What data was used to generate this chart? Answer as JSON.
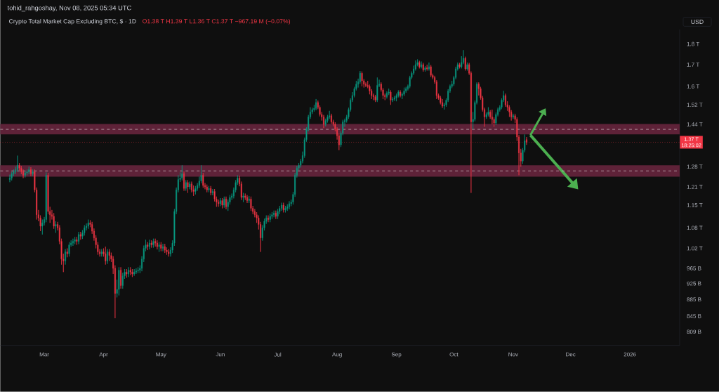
{
  "chart_data": {
    "type": "candlestick",
    "title": "Crypto Total Market Cap Excluding BTC, $ · 1D",
    "annotations": [
      "tohid_rahgoshay, Nov 08, 2025 05:34 UTC",
      "O1.38 T H1.39 T L1.36 T C1.37 T −967.19 M (−0.07%)",
      "USD",
      "18:25:02"
    ],
    "x": [
      "2025-02-11",
      "2025-02-12",
      "2025-02-13",
      "2025-02-14",
      "2025-02-15",
      "2025-02-16",
      "2025-02-17",
      "2025-02-18",
      "2025-02-19",
      "2025-02-20",
      "2025-02-21",
      "2025-02-22",
      "2025-02-23",
      "2025-02-24",
      "2025-02-25",
      "2025-02-26",
      "2025-02-27",
      "2025-02-28",
      "2025-03-01",
      "2025-03-02",
      "2025-03-03",
      "2025-03-04",
      "2025-03-05",
      "2025-03-06",
      "2025-03-07",
      "2025-03-08",
      "2025-03-09",
      "2025-03-10",
      "2025-03-11",
      "2025-03-12",
      "2025-03-13",
      "2025-03-14",
      "2025-03-15",
      "2025-03-16",
      "2025-03-17",
      "2025-03-18",
      "2025-03-19",
      "2025-03-20",
      "2025-03-21",
      "2025-03-22",
      "2025-03-23",
      "2025-03-24",
      "2025-03-25",
      "2025-03-26",
      "2025-03-27",
      "2025-03-28",
      "2025-03-29",
      "2025-03-30",
      "2025-03-31",
      "2025-04-01",
      "2025-04-02",
      "2025-04-03",
      "2025-04-04",
      "2025-04-05",
      "2025-04-06",
      "2025-04-07",
      "2025-04-08",
      "2025-04-09",
      "2025-04-10",
      "2025-04-11",
      "2025-04-12",
      "2025-04-13",
      "2025-04-14",
      "2025-04-15",
      "2025-04-16",
      "2025-04-17",
      "2025-04-18",
      "2025-04-19",
      "2025-04-20",
      "2025-04-21",
      "2025-04-22",
      "2025-04-23",
      "2025-04-24",
      "2025-04-25",
      "2025-04-26",
      "2025-04-27",
      "2025-04-28",
      "2025-04-29",
      "2025-04-30",
      "2025-05-01",
      "2025-05-02",
      "2025-05-03",
      "2025-05-04",
      "2025-05-05",
      "2025-05-06",
      "2025-05-07",
      "2025-05-08",
      "2025-05-09",
      "2025-05-10",
      "2025-05-11",
      "2025-05-12",
      "2025-05-13",
      "2025-05-14",
      "2025-05-15",
      "2025-05-16",
      "2025-05-17",
      "2025-05-18",
      "2025-05-19",
      "2025-05-20",
      "2025-05-21",
      "2025-05-22",
      "2025-05-23",
      "2025-05-24",
      "2025-05-25",
      "2025-05-26",
      "2025-05-27",
      "2025-05-28",
      "2025-05-29",
      "2025-05-30",
      "2025-05-31",
      "2025-06-01",
      "2025-06-02",
      "2025-06-03",
      "2025-06-04",
      "2025-06-05",
      "2025-06-06",
      "2025-06-07",
      "2025-06-08",
      "2025-06-09",
      "2025-06-10",
      "2025-06-11",
      "2025-06-12",
      "2025-06-13",
      "2025-06-14",
      "2025-06-15",
      "2025-06-16",
      "2025-06-17",
      "2025-06-18",
      "2025-06-19",
      "2025-06-20",
      "2025-06-21",
      "2025-06-22",
      "2025-06-23",
      "2025-06-24",
      "2025-06-25",
      "2025-06-26",
      "2025-06-27",
      "2025-06-28",
      "2025-06-29",
      "2025-06-30",
      "2025-07-01",
      "2025-07-02",
      "2025-07-03",
      "2025-07-04",
      "2025-07-05",
      "2025-07-06",
      "2025-07-07",
      "2025-07-08",
      "2025-07-09",
      "2025-07-10",
      "2025-07-11",
      "2025-07-12",
      "2025-07-13",
      "2025-07-14",
      "2025-07-15",
      "2025-07-16",
      "2025-07-17",
      "2025-07-18",
      "2025-07-19",
      "2025-07-20",
      "2025-07-21",
      "2025-07-22",
      "2025-07-23",
      "2025-07-24",
      "2025-07-25",
      "2025-07-26",
      "2025-07-27",
      "2025-07-28",
      "2025-07-29",
      "2025-07-30",
      "2025-07-31",
      "2025-08-01",
      "2025-08-02",
      "2025-08-03",
      "2025-08-04",
      "2025-08-05",
      "2025-08-06",
      "2025-08-07",
      "2025-08-08",
      "2025-08-09",
      "2025-08-10",
      "2025-08-11",
      "2025-08-12",
      "2025-08-13",
      "2025-08-14",
      "2025-08-15",
      "2025-08-16",
      "2025-08-17",
      "2025-08-18",
      "2025-08-19",
      "2025-08-20",
      "2025-08-21",
      "2025-08-22",
      "2025-08-23",
      "2025-08-24",
      "2025-08-25",
      "2025-08-26",
      "2025-08-27",
      "2025-08-28",
      "2025-08-29",
      "2025-08-30",
      "2025-08-31",
      "2025-09-01",
      "2025-09-02",
      "2025-09-03",
      "2025-09-04",
      "2025-09-05",
      "2025-09-06",
      "2025-09-07",
      "2025-09-08",
      "2025-09-09",
      "2025-09-10",
      "2025-09-11",
      "2025-09-12",
      "2025-09-13",
      "2025-09-14",
      "2025-09-15",
      "2025-09-16",
      "2025-09-17",
      "2025-09-18",
      "2025-09-19",
      "2025-09-20",
      "2025-09-21",
      "2025-09-22",
      "2025-09-23",
      "2025-09-24",
      "2025-09-25",
      "2025-09-26",
      "2025-09-27",
      "2025-09-28",
      "2025-09-29",
      "2025-09-30",
      "2025-10-01",
      "2025-10-02",
      "2025-10-03",
      "2025-10-04",
      "2025-10-05",
      "2025-10-06",
      "2025-10-07",
      "2025-10-08",
      "2025-10-09",
      "2025-10-10",
      "2025-10-11",
      "2025-10-12",
      "2025-10-13",
      "2025-10-14",
      "2025-10-15",
      "2025-10-16",
      "2025-10-17",
      "2025-10-18",
      "2025-10-19",
      "2025-10-20",
      "2025-10-21",
      "2025-10-22",
      "2025-10-23",
      "2025-10-24",
      "2025-10-25",
      "2025-10-26",
      "2025-10-27",
      "2025-10-28",
      "2025-10-29",
      "2025-10-30",
      "2025-10-31",
      "2025-11-01",
      "2025-11-02",
      "2025-11-03",
      "2025-11-04",
      "2025-11-05",
      "2025-11-06",
      "2025-11-07",
      "2025-11-08"
    ],
    "ohlc": [
      [
        1235000000000.0,
        1252000000000.0,
        1226000000000.0,
        1240000000000.0
      ],
      [
        1240000000000.0,
        1262000000000.0,
        1232000000000.0,
        1255000000000.0
      ],
      [
        1255000000000.0,
        1270000000000.0,
        1247000000000.0,
        1262000000000.0
      ],
      [
        1262000000000.0,
        1280000000000.0,
        1254000000000.0,
        1270000000000.0
      ],
      [
        1270000000000.0,
        1320000000000.0,
        1262000000000.0,
        1285000000000.0
      ],
      [
        1285000000000.0,
        1293000000000.0,
        1267000000000.0,
        1275000000000.0
      ],
      [
        1275000000000.0,
        1283000000000.0,
        1254000000000.0,
        1262000000000.0
      ],
      [
        1262000000000.0,
        1270000000000.0,
        1240000000000.0,
        1250000000000.0
      ],
      [
        1250000000000.0,
        1266000000000.0,
        1242000000000.0,
        1258000000000.0
      ],
      [
        1258000000000.0,
        1270000000000.0,
        1250000000000.0,
        1262000000000.0
      ],
      [
        1262000000000.0,
        1280000000000.0,
        1254000000000.0,
        1270000000000.0
      ],
      [
        1270000000000.0,
        1278000000000.0,
        1247000000000.0,
        1255000000000.0
      ],
      [
        1255000000000.0,
        1270000000000.0,
        1247000000000.0,
        1262000000000.0
      ],
      [
        1262000000000.0,
        1270000000000.0,
        1192000000000.0,
        1200000000000.0
      ],
      [
        1200000000000.0,
        1208000000000.0,
        1105000000000.0,
        1120000000000.0
      ],
      [
        1120000000000.0,
        1135000000000.0,
        1100000000000.0,
        1110000000000.0
      ],
      [
        1110000000000.0,
        1118000000000.0,
        1070000000000.0,
        1085000000000.0
      ],
      [
        1085000000000.0,
        1105000000000.0,
        1060000000000.0,
        1095000000000.0
      ],
      [
        1095000000000.0,
        1113000000000.0,
        1087000000000.0,
        1105000000000.0
      ],
      [
        1105000000000.0,
        1260000000000.0,
        1097000000000.0,
        1250000000000.0
      ],
      [
        1250000000000.0,
        1258000000000.0,
        1122000000000.0,
        1130000000000.0
      ],
      [
        1130000000000.0,
        1145000000000.0,
        1095000000000.0,
        1120000000000.0
      ],
      [
        1120000000000.0,
        1135000000000.0,
        1105000000000.0,
        1115000000000.0
      ],
      [
        1115000000000.0,
        1125000000000.0,
        1077000000000.0,
        1085000000000.0
      ],
      [
        1085000000000.0,
        1100000000000.0,
        1065000000000.0,
        1090000000000.0
      ],
      [
        1090000000000.0,
        1098000000000.0,
        1072000000000.0,
        1080000000000.0
      ],
      [
        1080000000000.0,
        1088000000000.0,
        1032000000000.0,
        1040000000000.0
      ],
      [
        1040000000000.0,
        1048000000000.0,
        975000000000.0,
        990000000000.0
      ],
      [
        990000000000.0,
        1005000000000.0,
        955000000000.0,
        985000000000.0
      ],
      [
        985000000000.0,
        1018000000000.0,
        975000000000.0,
        1010000000000.0
      ],
      [
        1010000000000.0,
        1020000000000.0,
        995000000000.0,
        1005000000000.0
      ],
      [
        1005000000000.0,
        1038000000000.0,
        997000000000.0,
        1030000000000.0
      ],
      [
        1030000000000.0,
        1043000000000.0,
        1025000000000.0,
        1035000000000.0
      ],
      [
        1035000000000.0,
        1048000000000.0,
        1027000000000.0,
        1040000000000.0
      ],
      [
        1040000000000.0,
        1053000000000.0,
        1032000000000.0,
        1045000000000.0
      ],
      [
        1045000000000.0,
        1053000000000.0,
        1030000000000.0,
        1040000000000.0
      ],
      [
        1040000000000.0,
        1068000000000.0,
        1032000000000.0,
        1060000000000.0
      ],
      [
        1060000000000.0,
        1068000000000.0,
        1045000000000.0,
        1055000000000.0
      ],
      [
        1055000000000.0,
        1073000000000.0,
        1047000000000.0,
        1065000000000.0
      ],
      [
        1065000000000.0,
        1088000000000.0,
        1057000000000.0,
        1080000000000.0
      ],
      [
        1080000000000.0,
        1093000000000.0,
        1072000000000.0,
        1085000000000.0
      ],
      [
        1085000000000.0,
        1105000000000.0,
        1077000000000.0,
        1095000000000.0
      ],
      [
        1095000000000.0,
        1103000000000.0,
        1082000000000.0,
        1090000000000.0
      ],
      [
        1090000000000.0,
        1098000000000.0,
        1062000000000.0,
        1070000000000.0
      ],
      [
        1070000000000.0,
        1078000000000.0,
        1042000000000.0,
        1050000000000.0
      ],
      [
        1050000000000.0,
        1058000000000.0,
        1020000000000.0,
        1030000000000.0
      ],
      [
        1030000000000.0,
        1038000000000.0,
        1002000000000.0,
        1010000000000.0
      ],
      [
        1010000000000.0,
        1018000000000.0,
        997000000000.0,
        1005000000000.0
      ],
      [
        1005000000000.0,
        1018000000000.0,
        997000000000.0,
        1010000000000.0
      ],
      [
        1010000000000.0,
        1020000000000.0,
        997000000000.0,
        1005000000000.0
      ],
      [
        1005000000000.0,
        1025000000000.0,
        975000000000.0,
        985000000000.0
      ],
      [
        985000000000.0,
        1018000000000.0,
        977000000000.0,
        1010000000000.0
      ],
      [
        1010000000000.0,
        1018000000000.0,
        985000000000.0,
        1000000000000.0
      ],
      [
        1000000000000.0,
        1008000000000.0,
        982000000000.0,
        990000000000.0
      ],
      [
        990000000000.0,
        998000000000.0,
        950000000000.0,
        965000000000.0
      ],
      [
        965000000000.0,
        973000000000.0,
        840000000000.0,
        900000000000.0
      ],
      [
        900000000000.0,
        935000000000.0,
        890000000000.0,
        910000000000.0
      ],
      [
        910000000000.0,
        968000000000.0,
        895000000000.0,
        960000000000.0
      ],
      [
        960000000000.0,
        968000000000.0,
        912000000000.0,
        920000000000.0
      ],
      [
        920000000000.0,
        953000000000.0,
        912000000000.0,
        945000000000.0
      ],
      [
        945000000000.0,
        963000000000.0,
        937000000000.0,
        955000000000.0
      ],
      [
        955000000000.0,
        963000000000.0,
        940000000000.0,
        950000000000.0
      ],
      [
        950000000000.0,
        968000000000.0,
        942000000000.0,
        960000000000.0
      ],
      [
        960000000000.0,
        968000000000.0,
        947000000000.0,
        955000000000.0
      ],
      [
        955000000000.0,
        963000000000.0,
        942000000000.0,
        950000000000.0
      ],
      [
        950000000000.0,
        963000000000.0,
        945000000000.0,
        955000000000.0
      ],
      [
        955000000000.0,
        965000000000.0,
        950000000000.0,
        958000000000.0
      ],
      [
        958000000000.0,
        968000000000.0,
        952000000000.0,
        960000000000.0
      ],
      [
        960000000000.0,
        973000000000.0,
        952000000000.0,
        965000000000.0
      ],
      [
        965000000000.0,
        998000000000.0,
        957000000000.0,
        990000000000.0
      ],
      [
        990000000000.0,
        1028000000000.0,
        982000000000.0,
        1020000000000.0
      ],
      [
        1020000000000.0,
        1045000000000.0,
        1012000000000.0,
        1030000000000.0
      ],
      [
        1030000000000.0,
        1038000000000.0,
        1015000000000.0,
        1025000000000.0
      ],
      [
        1025000000000.0,
        1045000000000.0,
        1017000000000.0,
        1035000000000.0
      ],
      [
        1035000000000.0,
        1043000000000.0,
        1022000000000.0,
        1030000000000.0
      ],
      [
        1030000000000.0,
        1048000000000.0,
        1022000000000.0,
        1040000000000.0
      ],
      [
        1040000000000.0,
        1048000000000.0,
        1025000000000.0,
        1035000000000.0
      ],
      [
        1035000000000.0,
        1043000000000.0,
        1017000000000.0,
        1025000000000.0
      ],
      [
        1025000000000.0,
        1038000000000.0,
        1010000000000.0,
        1030000000000.0
      ],
      [
        1030000000000.0,
        1038000000000.0,
        1012000000000.0,
        1020000000000.0
      ],
      [
        1020000000000.0,
        1033000000000.0,
        1012000000000.0,
        1025000000000.0
      ],
      [
        1025000000000.0,
        1033000000000.0,
        1007000000000.0,
        1015000000000.0
      ],
      [
        1015000000000.0,
        1023000000000.0,
        1002000000000.0,
        1010000000000.0
      ],
      [
        1010000000000.0,
        1018000000000.0,
        997000000000.0,
        1005000000000.0
      ],
      [
        1005000000000.0,
        1023000000000.0,
        997000000000.0,
        1015000000000.0
      ],
      [
        1015000000000.0,
        1043000000000.0,
        1007000000000.0,
        1035000000000.0
      ],
      [
        1035000000000.0,
        1138000000000.0,
        1027000000000.0,
        1130000000000.0
      ],
      [
        1130000000000.0,
        1208000000000.0,
        1122000000000.0,
        1200000000000.0
      ],
      [
        1200000000000.0,
        1250000000000.0,
        1192000000000.0,
        1235000000000.0
      ],
      [
        1235000000000.0,
        1260000000000.0,
        1227000000000.0,
        1240000000000.0
      ],
      [
        1240000000000.0,
        1285000000000.0,
        1232000000000.0,
        1255000000000.0
      ],
      [
        1255000000000.0,
        1263000000000.0,
        1197000000000.0,
        1205000000000.0
      ],
      [
        1205000000000.0,
        1233000000000.0,
        1197000000000.0,
        1225000000000.0
      ],
      [
        1225000000000.0,
        1233000000000.0,
        1190000000000.0,
        1210000000000.0
      ],
      [
        1210000000000.0,
        1228000000000.0,
        1202000000000.0,
        1220000000000.0
      ],
      [
        1220000000000.0,
        1228000000000.0,
        1192000000000.0,
        1200000000000.0
      ],
      [
        1200000000000.0,
        1215000000000.0,
        1180000000000.0,
        1195000000000.0
      ],
      [
        1195000000000.0,
        1213000000000.0,
        1185000000000.0,
        1205000000000.0
      ],
      [
        1205000000000.0,
        1223000000000.0,
        1197000000000.0,
        1215000000000.0
      ],
      [
        1215000000000.0,
        1245000000000.0,
        1207000000000.0,
        1230000000000.0
      ],
      [
        1230000000000.0,
        1285000000000.0,
        1222000000000.0,
        1250000000000.0
      ],
      [
        1250000000000.0,
        1258000000000.0,
        1207000000000.0,
        1215000000000.0
      ],
      [
        1215000000000.0,
        1223000000000.0,
        1202000000000.0,
        1210000000000.0
      ],
      [
        1210000000000.0,
        1218000000000.0,
        1192000000000.0,
        1200000000000.0
      ],
      [
        1200000000000.0,
        1213000000000.0,
        1192000000000.0,
        1205000000000.0
      ],
      [
        1205000000000.0,
        1213000000000.0,
        1182000000000.0,
        1190000000000.0
      ],
      [
        1190000000000.0,
        1203000000000.0,
        1182000000000.0,
        1195000000000.0
      ],
      [
        1195000000000.0,
        1203000000000.0,
        1162000000000.0,
        1170000000000.0
      ],
      [
        1170000000000.0,
        1178000000000.0,
        1145000000000.0,
        1160000000000.0
      ],
      [
        1160000000000.0,
        1168000000000.0,
        1145000000000.0,
        1155000000000.0
      ],
      [
        1155000000000.0,
        1173000000000.0,
        1147000000000.0,
        1165000000000.0
      ],
      [
        1165000000000.0,
        1173000000000.0,
        1140000000000.0,
        1150000000000.0
      ],
      [
        1150000000000.0,
        1178000000000.0,
        1142000000000.0,
        1170000000000.0
      ],
      [
        1170000000000.0,
        1178000000000.0,
        1137000000000.0,
        1145000000000.0
      ],
      [
        1145000000000.0,
        1168000000000.0,
        1132000000000.0,
        1160000000000.0
      ],
      [
        1160000000000.0,
        1183000000000.0,
        1152000000000.0,
        1175000000000.0
      ],
      [
        1175000000000.0,
        1188000000000.0,
        1167000000000.0,
        1180000000000.0
      ],
      [
        1180000000000.0,
        1208000000000.0,
        1172000000000.0,
        1200000000000.0
      ],
      [
        1200000000000.0,
        1233000000000.0,
        1192000000000.0,
        1225000000000.0
      ],
      [
        1225000000000.0,
        1250000000000.0,
        1217000000000.0,
        1240000000000.0
      ],
      [
        1240000000000.0,
        1248000000000.0,
        1212000000000.0,
        1220000000000.0
      ],
      [
        1220000000000.0,
        1228000000000.0,
        1167000000000.0,
        1175000000000.0
      ],
      [
        1175000000000.0,
        1190000000000.0,
        1160000000000.0,
        1180000000000.0
      ],
      [
        1180000000000.0,
        1188000000000.0,
        1167000000000.0,
        1175000000000.0
      ],
      [
        1175000000000.0,
        1183000000000.0,
        1157000000000.0,
        1165000000000.0
      ],
      [
        1165000000000.0,
        1180000000000.0,
        1157000000000.0,
        1170000000000.0
      ],
      [
        1170000000000.0,
        1178000000000.0,
        1132000000000.0,
        1140000000000.0
      ],
      [
        1140000000000.0,
        1148000000000.0,
        1122000000000.0,
        1130000000000.0
      ],
      [
        1130000000000.0,
        1138000000000.0,
        1112000000000.0,
        1120000000000.0
      ],
      [
        1120000000000.0,
        1128000000000.0,
        1095000000000.0,
        1110000000000.0
      ],
      [
        1110000000000.0,
        1118000000000.0,
        1075000000000.0,
        1090000000000.0
      ],
      [
        1090000000000.0,
        1098000000000.0,
        1010000000000.0,
        1050000000000.0
      ],
      [
        1050000000000.0,
        1088000000000.0,
        1042000000000.0,
        1080000000000.0
      ],
      [
        1080000000000.0,
        1108000000000.0,
        1072000000000.0,
        1100000000000.0
      ],
      [
        1100000000000.0,
        1118000000000.0,
        1092000000000.0,
        1110000000000.0
      ],
      [
        1110000000000.0,
        1118000000000.0,
        1097000000000.0,
        1105000000000.0
      ],
      [
        1105000000000.0,
        1123000000000.0,
        1097000000000.0,
        1115000000000.0
      ],
      [
        1115000000000.0,
        1128000000000.0,
        1107000000000.0,
        1120000000000.0
      ],
      [
        1120000000000.0,
        1133000000000.0,
        1112000000000.0,
        1125000000000.0
      ],
      [
        1125000000000.0,
        1133000000000.0,
        1107000000000.0,
        1115000000000.0
      ],
      [
        1115000000000.0,
        1138000000000.0,
        1107000000000.0,
        1130000000000.0
      ],
      [
        1130000000000.0,
        1148000000000.0,
        1122000000000.0,
        1140000000000.0
      ],
      [
        1140000000000.0,
        1158000000000.0,
        1132000000000.0,
        1150000000000.0
      ],
      [
        1150000000000.0,
        1158000000000.0,
        1127000000000.0,
        1135000000000.0
      ],
      [
        1135000000000.0,
        1148000000000.0,
        1127000000000.0,
        1140000000000.0
      ],
      [
        1140000000000.0,
        1153000000000.0,
        1132000000000.0,
        1145000000000.0
      ],
      [
        1145000000000.0,
        1163000000000.0,
        1137000000000.0,
        1155000000000.0
      ],
      [
        1155000000000.0,
        1168000000000.0,
        1147000000000.0,
        1160000000000.0
      ],
      [
        1160000000000.0,
        1193000000000.0,
        1152000000000.0,
        1185000000000.0
      ],
      [
        1185000000000.0,
        1258000000000.0,
        1177000000000.0,
        1250000000000.0
      ],
      [
        1250000000000.0,
        1283000000000.0,
        1242000000000.0,
        1275000000000.0
      ],
      [
        1275000000000.0,
        1293000000000.0,
        1267000000000.0,
        1285000000000.0
      ],
      [
        1285000000000.0,
        1308000000000.0,
        1277000000000.0,
        1300000000000.0
      ],
      [
        1300000000000.0,
        1335000000000.0,
        1292000000000.0,
        1320000000000.0
      ],
      [
        1320000000000.0,
        1388000000000.0,
        1312000000000.0,
        1380000000000.0
      ],
      [
        1380000000000.0,
        1428000000000.0,
        1372000000000.0,
        1420000000000.0
      ],
      [
        1420000000000.0,
        1478000000000.0,
        1412000000000.0,
        1470000000000.0
      ],
      [
        1470000000000.0,
        1510000000000.0,
        1462000000000.0,
        1490000000000.0
      ],
      [
        1490000000000.0,
        1508000000000.0,
        1482000000000.0,
        1500000000000.0
      ],
      [
        1500000000000.0,
        1520000000000.0,
        1492000000000.0,
        1505000000000.0
      ],
      [
        1505000000000.0,
        1545000000000.0,
        1497000000000.0,
        1530000000000.0
      ],
      [
        1530000000000.0,
        1538000000000.0,
        1502000000000.0,
        1510000000000.0
      ],
      [
        1510000000000.0,
        1518000000000.0,
        1472000000000.0,
        1480000000000.0
      ],
      [
        1480000000000.0,
        1490000000000.0,
        1455000000000.0,
        1470000000000.0
      ],
      [
        1470000000000.0,
        1478000000000.0,
        1425000000000.0,
        1440000000000.0
      ],
      [
        1440000000000.0,
        1463000000000.0,
        1432000000000.0,
        1455000000000.0
      ],
      [
        1455000000000.0,
        1478000000000.0,
        1447000000000.0,
        1470000000000.0
      ],
      [
        1470000000000.0,
        1495000000000.0,
        1462000000000.0,
        1475000000000.0
      ],
      [
        1475000000000.0,
        1483000000000.0,
        1442000000000.0,
        1450000000000.0
      ],
      [
        1450000000000.0,
        1458000000000.0,
        1432000000000.0,
        1440000000000.0
      ],
      [
        1440000000000.0,
        1448000000000.0,
        1412000000000.0,
        1420000000000.0
      ],
      [
        1420000000000.0,
        1428000000000.0,
        1380000000000.0,
        1395000000000.0
      ],
      [
        1395000000000.0,
        1403000000000.0,
        1340000000000.0,
        1360000000000.0
      ],
      [
        1360000000000.0,
        1413000000000.0,
        1352000000000.0,
        1405000000000.0
      ],
      [
        1405000000000.0,
        1458000000000.0,
        1397000000000.0,
        1450000000000.0
      ],
      [
        1450000000000.0,
        1463000000000.0,
        1430000000000.0,
        1455000000000.0
      ],
      [
        1455000000000.0,
        1478000000000.0,
        1447000000000.0,
        1470000000000.0
      ],
      [
        1470000000000.0,
        1508000000000.0,
        1462000000000.0,
        1500000000000.0
      ],
      [
        1500000000000.0,
        1548000000000.0,
        1492000000000.0,
        1540000000000.0
      ],
      [
        1540000000000.0,
        1575000000000.0,
        1532000000000.0,
        1560000000000.0
      ],
      [
        1560000000000.0,
        1598000000000.0,
        1552000000000.0,
        1590000000000.0
      ],
      [
        1590000000000.0,
        1625000000000.0,
        1582000000000.0,
        1610000000000.0
      ],
      [
        1610000000000.0,
        1635000000000.0,
        1595000000000.0,
        1620000000000.0
      ],
      [
        1620000000000.0,
        1670000000000.0,
        1612000000000.0,
        1660000000000.0
      ],
      [
        1660000000000.0,
        1668000000000.0,
        1600000000000.0,
        1625000000000.0
      ],
      [
        1625000000000.0,
        1633000000000.0,
        1595000000000.0,
        1610000000000.0
      ],
      [
        1610000000000.0,
        1618000000000.0,
        1597000000000.0,
        1605000000000.0
      ],
      [
        1605000000000.0,
        1625000000000.0,
        1592000000000.0,
        1600000000000.0
      ],
      [
        1600000000000.0,
        1608000000000.0,
        1565000000000.0,
        1580000000000.0
      ],
      [
        1580000000000.0,
        1588000000000.0,
        1545000000000.0,
        1560000000000.0
      ],
      [
        1560000000000.0,
        1568000000000.0,
        1540000000000.0,
        1555000000000.0
      ],
      [
        1555000000000.0,
        1563000000000.0,
        1532000000000.0,
        1540000000000.0
      ],
      [
        1540000000000.0,
        1640000000000.0,
        1532000000000.0,
        1605000000000.0
      ],
      [
        1605000000000.0,
        1630000000000.0,
        1597000000000.0,
        1610000000000.0
      ],
      [
        1610000000000.0,
        1618000000000.0,
        1577000000000.0,
        1585000000000.0
      ],
      [
        1585000000000.0,
        1593000000000.0,
        1545000000000.0,
        1560000000000.0
      ],
      [
        1560000000000.0,
        1568000000000.0,
        1540000000000.0,
        1555000000000.0
      ],
      [
        1555000000000.0,
        1578000000000.0,
        1547000000000.0,
        1570000000000.0
      ],
      [
        1570000000000.0,
        1590000000000.0,
        1562000000000.0,
        1575000000000.0
      ],
      [
        1575000000000.0,
        1583000000000.0,
        1520000000000.0,
        1540000000000.0
      ],
      [
        1540000000000.0,
        1553000000000.0,
        1532000000000.0,
        1545000000000.0
      ],
      [
        1545000000000.0,
        1558000000000.0,
        1537000000000.0,
        1550000000000.0
      ],
      [
        1550000000000.0,
        1568000000000.0,
        1535000000000.0,
        1560000000000.0
      ],
      [
        1560000000000.0,
        1583000000000.0,
        1552000000000.0,
        1575000000000.0
      ],
      [
        1575000000000.0,
        1583000000000.0,
        1552000000000.0,
        1560000000000.0
      ],
      [
        1560000000000.0,
        1573000000000.0,
        1545000000000.0,
        1565000000000.0
      ],
      [
        1565000000000.0,
        1595000000000.0,
        1557000000000.0,
        1580000000000.0
      ],
      [
        1580000000000.0,
        1598000000000.0,
        1572000000000.0,
        1590000000000.0
      ],
      [
        1590000000000.0,
        1608000000000.0,
        1582000000000.0,
        1600000000000.0
      ],
      [
        1600000000000.0,
        1648000000000.0,
        1592000000000.0,
        1640000000000.0
      ],
      [
        1640000000000.0,
        1668000000000.0,
        1632000000000.0,
        1660000000000.0
      ],
      [
        1660000000000.0,
        1695000000000.0,
        1652000000000.0,
        1680000000000.0
      ],
      [
        1680000000000.0,
        1720000000000.0,
        1672000000000.0,
        1700000000000.0
      ],
      [
        1700000000000.0,
        1725000000000.0,
        1692000000000.0,
        1710000000000.0
      ],
      [
        1710000000000.0,
        1718000000000.0,
        1682000000000.0,
        1690000000000.0
      ],
      [
        1690000000000.0,
        1715000000000.0,
        1682000000000.0,
        1700000000000.0
      ],
      [
        1700000000000.0,
        1708000000000.0,
        1667000000000.0,
        1675000000000.0
      ],
      [
        1675000000000.0,
        1693000000000.0,
        1667000000000.0,
        1685000000000.0
      ],
      [
        1685000000000.0,
        1700000000000.0,
        1672000000000.0,
        1680000000000.0
      ],
      [
        1680000000000.0,
        1710000000000.0,
        1672000000000.0,
        1690000000000.0
      ],
      [
        1690000000000.0,
        1698000000000.0,
        1642000000000.0,
        1650000000000.0
      ],
      [
        1650000000000.0,
        1658000000000.0,
        1632000000000.0,
        1640000000000.0
      ],
      [
        1640000000000.0,
        1648000000000.0,
        1612000000000.0,
        1620000000000.0
      ],
      [
        1620000000000.0,
        1628000000000.0,
        1545000000000.0,
        1560000000000.0
      ],
      [
        1560000000000.0,
        1568000000000.0,
        1542000000000.0,
        1550000000000.0
      ],
      [
        1550000000000.0,
        1558000000000.0,
        1522000000000.0,
        1530000000000.0
      ],
      [
        1530000000000.0,
        1545000000000.0,
        1507000000000.0,
        1515000000000.0
      ],
      [
        1515000000000.0,
        1528000000000.0,
        1500000000000.0,
        1520000000000.0
      ],
      [
        1520000000000.0,
        1548000000000.0,
        1512000000000.0,
        1540000000000.0
      ],
      [
        1540000000000.0,
        1588000000000.0,
        1532000000000.0,
        1580000000000.0
      ],
      [
        1580000000000.0,
        1608000000000.0,
        1572000000000.0,
        1600000000000.0
      ],
      [
        1600000000000.0,
        1625000000000.0,
        1592000000000.0,
        1610000000000.0
      ],
      [
        1610000000000.0,
        1648000000000.0,
        1602000000000.0,
        1640000000000.0
      ],
      [
        1640000000000.0,
        1690000000000.0,
        1632000000000.0,
        1680000000000.0
      ],
      [
        1680000000000.0,
        1710000000000.0,
        1672000000000.0,
        1700000000000.0
      ],
      [
        1700000000000.0,
        1708000000000.0,
        1682000000000.0,
        1690000000000.0
      ],
      [
        1690000000000.0,
        1740000000000.0,
        1682000000000.0,
        1710000000000.0
      ],
      [
        1710000000000.0,
        1770000000000.0,
        1702000000000.0,
        1730000000000.0
      ],
      [
        1730000000000.0,
        1738000000000.0,
        1672000000000.0,
        1680000000000.0
      ],
      [
        1680000000000.0,
        1710000000000.0,
        1672000000000.0,
        1700000000000.0
      ],
      [
        1700000000000.0,
        1708000000000.0,
        1652000000000.0,
        1660000000000.0
      ],
      [
        1660000000000.0,
        1668000000000.0,
        1190000000000.0,
        1450000000000.0
      ],
      [
        1450000000000.0,
        1490000000000.0,
        1420000000000.0,
        1460000000000.0
      ],
      [
        1460000000000.0,
        1538000000000.0,
        1452000000000.0,
        1530000000000.0
      ],
      [
        1530000000000.0,
        1618000000000.0,
        1522000000000.0,
        1610000000000.0
      ],
      [
        1610000000000.0,
        1618000000000.0,
        1560000000000.0,
        1590000000000.0
      ],
      [
        1590000000000.0,
        1598000000000.0,
        1542000000000.0,
        1550000000000.0
      ],
      [
        1550000000000.0,
        1558000000000.0,
        1492000000000.0,
        1500000000000.0
      ],
      [
        1500000000000.0,
        1508000000000.0,
        1430000000000.0,
        1470000000000.0
      ],
      [
        1470000000000.0,
        1488000000000.0,
        1462000000000.0,
        1480000000000.0
      ],
      [
        1480000000000.0,
        1510000000000.0,
        1472000000000.0,
        1490000000000.0
      ],
      [
        1490000000000.0,
        1498000000000.0,
        1462000000000.0,
        1470000000000.0
      ],
      [
        1470000000000.0,
        1500000000000.0,
        1440000000000.0,
        1460000000000.0
      ],
      [
        1460000000000.0,
        1468000000000.0,
        1430000000000.0,
        1445000000000.0
      ],
      [
        1445000000000.0,
        1488000000000.0,
        1437000000000.0,
        1480000000000.0
      ],
      [
        1480000000000.0,
        1508000000000.0,
        1472000000000.0,
        1500000000000.0
      ],
      [
        1500000000000.0,
        1518000000000.0,
        1492000000000.0,
        1510000000000.0
      ],
      [
        1510000000000.0,
        1548000000000.0,
        1502000000000.0,
        1540000000000.0
      ],
      [
        1540000000000.0,
        1580000000000.0,
        1532000000000.0,
        1560000000000.0
      ],
      [
        1560000000000.0,
        1568000000000.0,
        1512000000000.0,
        1520000000000.0
      ],
      [
        1520000000000.0,
        1535000000000.0,
        1495000000000.0,
        1510000000000.0
      ],
      [
        1510000000000.0,
        1518000000000.0,
        1470000000000.0,
        1490000000000.0
      ],
      [
        1490000000000.0,
        1498000000000.0,
        1455000000000.0,
        1470000000000.0
      ],
      [
        1470000000000.0,
        1483000000000.0,
        1462000000000.0,
        1475000000000.0
      ],
      [
        1475000000000.0,
        1483000000000.0,
        1445000000000.0,
        1460000000000.0
      ],
      [
        1460000000000.0,
        1468000000000.0,
        1375000000000.0,
        1390000000000.0
      ],
      [
        1390000000000.0,
        1398000000000.0,
        1250000000000.0,
        1330000000000.0
      ],
      [
        1330000000000.0,
        1345000000000.0,
        1280000000000.0,
        1300000000000.0
      ],
      [
        1300000000000.0,
        1348000000000.0,
        1290000000000.0,
        1340000000000.0
      ],
      [
        1340000000000.0,
        1400000000000.0,
        1332000000000.0,
        1375000000000.0
      ],
      [
        1380000000000.0,
        1390000000000.0,
        1360000000000.0,
        1370000000000.0
      ]
    ],
    "xlim": [
      "2025-02-06",
      "2026-01-27"
    ],
    "xticks": [
      {
        "value": "2025-03-01",
        "label": "Mar"
      },
      {
        "value": "2025-04-01",
        "label": "Apr"
      },
      {
        "value": "2025-05-01",
        "label": "May"
      },
      {
        "value": "2025-06-01",
        "label": "Jun"
      },
      {
        "value": "2025-07-01",
        "label": "Jul"
      },
      {
        "value": "2025-08-01",
        "label": "Aug"
      },
      {
        "value": "2025-09-01",
        "label": "Sep"
      },
      {
        "value": "2025-10-01",
        "label": "Oct"
      },
      {
        "value": "2025-11-01",
        "label": "Nov"
      },
      {
        "value": "2025-12-01",
        "label": "Dec"
      },
      {
        "value": "2026-01-01",
        "label": "2026"
      }
    ],
    "ylim": [
      779000000000.0,
      1875000000000.0
    ],
    "yticks": [
      {
        "value": 1800000000000.0,
        "label": "1.8 T"
      },
      {
        "value": 1700000000000.0,
        "label": "1.7 T"
      },
      {
        "value": 1600000000000.0,
        "label": "1.6 T"
      },
      {
        "value": 1520000000000.0,
        "label": "1.52 T"
      },
      {
        "value": 1440000000000.0,
        "label": "1.44 T"
      },
      {
        "value": 1280000000000.0,
        "label": "1.28 T"
      },
      {
        "value": 1210000000000.0,
        "label": "1.21 T"
      },
      {
        "value": 1150000000000.0,
        "label": "1.15 T"
      },
      {
        "value": 1080000000000.0,
        "label": "1.08 T"
      },
      {
        "value": 1020000000000.0,
        "label": "1.02 T"
      },
      {
        "value": 965000000000.0,
        "label": "965 B"
      },
      {
        "value": 925000000000.0,
        "label": "925 B"
      },
      {
        "value": 885000000000.0,
        "label": "885 B"
      },
      {
        "value": 845000000000.0,
        "label": "845 B"
      },
      {
        "value": 809000000000.0,
        "label": "809 B"
      }
    ],
    "log": true,
    "ref_lines": [
      {
        "axis": "y",
        "value": 1370000000000.0,
        "label": "1.37 T",
        "color": "#f23645",
        "line_style": "dotted"
      },
      {
        "axis": "y",
        "value": 1265000000000.0,
        "color": "#d7c8cd",
        "line_style": "dashed"
      },
      {
        "axis": "y",
        "value": 1420000000000.0,
        "color": "#d7c8cd",
        "line_style": "dashed"
      }
    ],
    "bands": [
      {
        "axis": "y",
        "from": 1245000000000.0,
        "to": 1285000000000.0,
        "color": "#5e2238"
      },
      {
        "axis": "y",
        "from": 1400000000000.0,
        "to": 1441000000000.0,
        "color": "#5e2238"
      }
    ]
  }
}
